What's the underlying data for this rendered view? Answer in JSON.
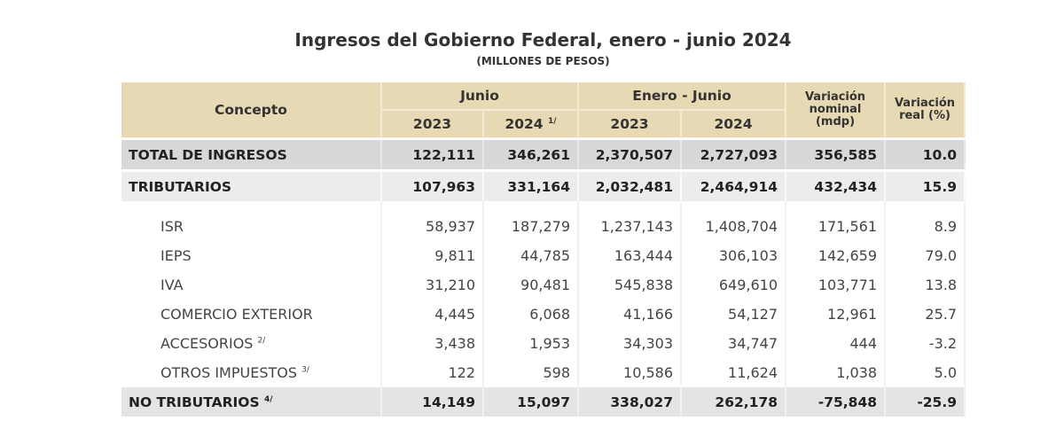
{
  "title": "Ingresos del Gobierno Federal, enero - junio 2024",
  "subtitle": "(MILLONES DE PESOS)",
  "header": {
    "concepto": "Concepto",
    "junio": "Junio",
    "enero_junio": "Enero - Junio",
    "var_nominal": "Variación nominal (mdp)",
    "var_real": "Variación real (%)",
    "y2023": "2023",
    "y2024": "2024",
    "y2024_note": "1/"
  },
  "colors": {
    "header_bg": "#e6d9b3",
    "total_bg": "#d8d8d8"
  },
  "rows": [
    {
      "label": "TOTAL DE INGRESOS",
      "note": "",
      "values": [
        "122,111",
        "346,261",
        "2,370,507",
        "2,727,093",
        "356,585",
        "10.0"
      ]
    },
    {
      "label": "TRIBUTARIOS",
      "note": "",
      "values": [
        "107,963",
        "331,164",
        "2,032,481",
        "2,464,914",
        "432,434",
        "15.9"
      ]
    },
    {
      "label": "ISR",
      "note": "",
      "values": [
        "58,937",
        "187,279",
        "1,237,143",
        "1,408,704",
        "171,561",
        "8.9"
      ]
    },
    {
      "label": "IEPS",
      "note": "",
      "values": [
        "9,811",
        "44,785",
        "163,444",
        "306,103",
        "142,659",
        "79.0"
      ]
    },
    {
      "label": "IVA",
      "note": "",
      "values": [
        "31,210",
        "90,481",
        "545,838",
        "649,610",
        "103,771",
        "13.8"
      ]
    },
    {
      "label": "COMERCIO EXTERIOR",
      "note": "",
      "values": [
        "4,445",
        "6,068",
        "41,166",
        "54,127",
        "12,961",
        "25.7"
      ]
    },
    {
      "label": "ACCESORIOS",
      "note": "2/",
      "values": [
        "3,438",
        "1,953",
        "34,303",
        "34,747",
        "444",
        "-3.2"
      ]
    },
    {
      "label": "OTROS IMPUESTOS",
      "note": "3/",
      "values": [
        "122",
        "598",
        "10,586",
        "11,624",
        "1,038",
        "5.0"
      ]
    },
    {
      "label": "NO TRIBUTARIOS",
      "note": "4/",
      "values": [
        "14,149",
        "15,097",
        "338,027",
        "262,178",
        "-75,848",
        "-25.9"
      ]
    }
  ]
}
